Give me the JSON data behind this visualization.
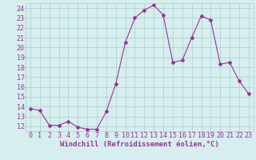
{
  "x": [
    0,
    1,
    2,
    3,
    4,
    5,
    6,
    7,
    8,
    9,
    10,
    11,
    12,
    13,
    14,
    15,
    16,
    17,
    18,
    19,
    20,
    21,
    22,
    23
  ],
  "y": [
    13.8,
    13.6,
    12.1,
    12.1,
    12.5,
    11.9,
    11.7,
    11.7,
    13.5,
    16.3,
    20.5,
    23.0,
    23.8,
    24.3,
    23.3,
    18.5,
    18.7,
    21.0,
    23.2,
    22.8,
    18.3,
    18.5,
    16.6,
    15.3
  ],
  "line_color": "#993399",
  "marker": "D",
  "marker_size": 2,
  "xlabel": "Windchill (Refroidissement éolien,°C)",
  "xlim": [
    -0.5,
    23.5
  ],
  "ylim": [
    11.5,
    24.5
  ],
  "yticks": [
    12,
    13,
    14,
    15,
    16,
    17,
    18,
    19,
    20,
    21,
    22,
    23,
    24
  ],
  "xticks": [
    0,
    1,
    2,
    3,
    4,
    5,
    6,
    7,
    8,
    9,
    10,
    11,
    12,
    13,
    14,
    15,
    16,
    17,
    18,
    19,
    20,
    21,
    22,
    23
  ],
  "bg_color": "#d6eeee",
  "grid_color": "#aacccc",
  "tick_color": "#993399",
  "label_color": "#993399",
  "label_fontsize": 6.5,
  "tick_fontsize": 6.0
}
